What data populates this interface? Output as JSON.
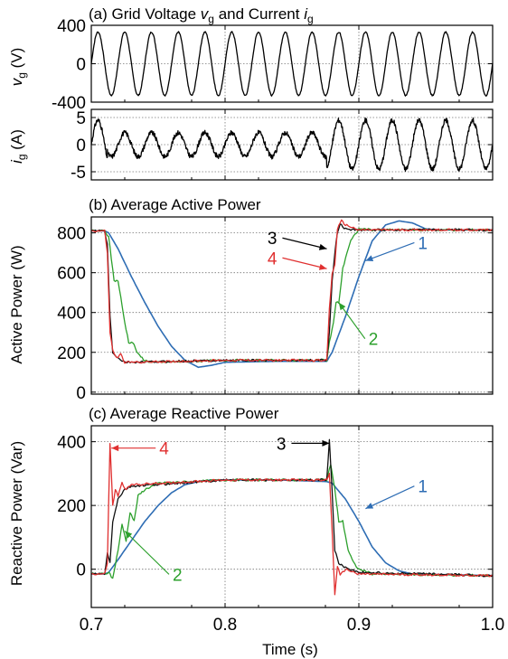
{
  "figure": {
    "xlabel": "Time (s)",
    "xlim": [
      0.7,
      1.0
    ],
    "xticks": [
      "0.7",
      "0.8",
      "0.9",
      "1.0"
    ]
  },
  "chart_data": [
    {
      "type": "line",
      "title": "(a) Grid Voltage v_g and Current i_g",
      "title_parts": {
        "pre": "(a) Grid Voltage ",
        "v": "v",
        "v_sub": "g",
        "mid": " and Current ",
        "i": "i",
        "i_sub": "g"
      },
      "ylabel_parts": {
        "v": "v",
        "sub": "g",
        "unit": " (V)"
      },
      "ylim": [
        -400,
        400
      ],
      "yticks": [
        "400",
        "0",
        "-400"
      ],
      "grid": true,
      "series": [
        {
          "color": "#000000",
          "amplitude": 330,
          "frequency_hz": 50,
          "x_range": [
            0.7,
            1.0
          ]
        }
      ]
    },
    {
      "type": "line",
      "ylabel_parts": {
        "v": "i",
        "sub": "g",
        "unit": " (A)"
      },
      "ylim": [
        -6.5,
        6.5
      ],
      "yticks": [
        "5",
        "0",
        "-5"
      ],
      "grid": true,
      "series": [
        {
          "color": "#000000",
          "frequency_hz": 50,
          "segments": [
            {
              "x_range": [
                0.7,
                0.712
              ],
              "amplitude": 4.5
            },
            {
              "x_range": [
                0.712,
                0.876
              ],
              "amplitude": 2.2
            },
            {
              "x_range": [
                0.876,
                1.0
              ],
              "amplitude": 4.5
            }
          ]
        }
      ]
    },
    {
      "type": "line",
      "title": "(b) Average Active Power",
      "ylabel": "Active Power (W)",
      "ylim": [
        -10,
        880
      ],
      "yticks": [
        "800",
        "600",
        "400",
        "200",
        "0"
      ],
      "grid": true,
      "series": [
        {
          "name": "1",
          "color": "#2e6db4",
          "x": [
            0.7,
            0.71,
            0.713,
            0.72,
            0.73,
            0.74,
            0.75,
            0.76,
            0.77,
            0.78,
            0.79,
            0.8,
            0.84,
            0.876,
            0.88,
            0.89,
            0.9,
            0.91,
            0.92,
            0.93,
            0.94,
            0.95,
            0.96,
            1.0
          ],
          "values": [
            810,
            810,
            800,
            720,
            580,
            450,
            330,
            230,
            160,
            125,
            135,
            150,
            155,
            155,
            200,
            380,
            580,
            760,
            840,
            860,
            850,
            820,
            815,
            815
          ]
        },
        {
          "name": "2",
          "color": "#2ca02c",
          "x": [
            0.7,
            0.71,
            0.713,
            0.717,
            0.72,
            0.725,
            0.728,
            0.731,
            0.735,
            0.74,
            0.745,
            0.75,
            0.8,
            0.876,
            0.878,
            0.881,
            0.883,
            0.885,
            0.888,
            0.891,
            0.894,
            0.9,
            0.91,
            1.0
          ],
          "values": [
            810,
            810,
            780,
            560,
            560,
            350,
            250,
            250,
            190,
            160,
            150,
            150,
            160,
            160,
            250,
            350,
            450,
            450,
            620,
            700,
            760,
            820,
            815,
            815
          ]
        },
        {
          "name": "3",
          "color": "#111111",
          "x": [
            0.7,
            0.71,
            0.712,
            0.714,
            0.716,
            0.72,
            0.725,
            0.73,
            0.8,
            0.876,
            0.878,
            0.88,
            0.882,
            0.884,
            0.886,
            0.888,
            0.89,
            0.9,
            1.0
          ],
          "values": [
            810,
            810,
            740,
            380,
            200,
            170,
            150,
            150,
            160,
            160,
            300,
            560,
            700,
            800,
            850,
            830,
            820,
            815,
            815
          ]
        },
        {
          "name": "4",
          "color": "#e03030",
          "x": [
            0.7,
            0.71,
            0.712,
            0.714,
            0.716,
            0.719,
            0.722,
            0.725,
            0.73,
            0.8,
            0.876,
            0.878,
            0.88,
            0.882,
            0.884,
            0.887,
            0.89,
            0.9,
            1.0
          ],
          "values": [
            810,
            810,
            700,
            300,
            210,
            170,
            190,
            150,
            150,
            160,
            160,
            420,
            590,
            640,
            820,
            860,
            840,
            815,
            815
          ]
        }
      ],
      "annotations": [
        {
          "text": "3",
          "color": "#000000",
          "target": [
            0.876,
            720
          ]
        },
        {
          "text": "4",
          "color": "#e03030",
          "target": [
            0.876,
            620
          ]
        },
        {
          "text": "2",
          "color": "#2ca02c",
          "target": [
            0.885,
            450
          ]
        },
        {
          "text": "1",
          "color": "#2e6db4",
          "target": [
            0.905,
            660
          ]
        }
      ]
    },
    {
      "type": "line",
      "title": "(c) Average Reactive Power",
      "ylabel": "Reactive Power (Var)",
      "ylim": [
        -120,
        450
      ],
      "yticks": [
        "400",
        "200",
        "0"
      ],
      "grid": true,
      "series": [
        {
          "name": "1",
          "color": "#2e6db4",
          "x": [
            0.7,
            0.71,
            0.713,
            0.72,
            0.73,
            0.74,
            0.75,
            0.76,
            0.77,
            0.78,
            0.79,
            0.8,
            0.84,
            0.876,
            0.88,
            0.89,
            0.9,
            0.91,
            0.92,
            0.93,
            0.94,
            1.0
          ],
          "values": [
            -15,
            -15,
            -10,
            30,
            90,
            150,
            200,
            240,
            265,
            275,
            280,
            280,
            280,
            275,
            270,
            220,
            150,
            70,
            20,
            -5,
            -15,
            -20
          ]
        },
        {
          "name": "2",
          "color": "#2ca02c",
          "x": [
            0.7,
            0.71,
            0.713,
            0.716,
            0.72,
            0.723,
            0.726,
            0.729,
            0.732,
            0.735,
            0.74,
            0.75,
            0.8,
            0.876,
            0.879,
            0.882,
            0.885,
            0.888,
            0.892,
            0.896,
            0.9,
            0.91,
            1.0
          ],
          "values": [
            -15,
            -15,
            -10,
            -30,
            60,
            140,
            90,
            180,
            150,
            230,
            250,
            270,
            280,
            280,
            330,
            250,
            150,
            150,
            60,
            20,
            0,
            -15,
            -20
          ]
        },
        {
          "name": "3",
          "color": "#111111",
          "x": [
            0.7,
            0.71,
            0.712,
            0.714,
            0.716,
            0.72,
            0.725,
            0.73,
            0.8,
            0.876,
            0.878,
            0.88,
            0.882,
            0.885,
            0.89,
            0.9,
            1.0
          ],
          "values": [
            -15,
            -15,
            50,
            20,
            150,
            220,
            250,
            260,
            280,
            280,
            405,
            250,
            60,
            20,
            5,
            -10,
            -20
          ]
        },
        {
          "name": "4",
          "color": "#e03030",
          "x": [
            0.7,
            0.71,
            0.712,
            0.714,
            0.716,
            0.718,
            0.72,
            0.723,
            0.726,
            0.73,
            0.8,
            0.876,
            0.878,
            0.88,
            0.882,
            0.884,
            0.886,
            0.89,
            0.9,
            1.0
          ],
          "values": [
            -15,
            -15,
            20,
            395,
            200,
            250,
            230,
            270,
            250,
            265,
            280,
            280,
            300,
            120,
            -80,
            10,
            -20,
            0,
            -15,
            -20
          ]
        }
      ],
      "annotations": [
        {
          "text": "4",
          "color": "#e03030",
          "target": [
            0.715,
            380
          ]
        },
        {
          "text": "2",
          "color": "#2ca02c",
          "target": [
            0.725,
            120
          ]
        },
        {
          "text": "3",
          "color": "#000000",
          "target": [
            0.878,
            395
          ]
        },
        {
          "text": "1",
          "color": "#2e6db4",
          "target": [
            0.905,
            190
          ]
        }
      ]
    }
  ]
}
